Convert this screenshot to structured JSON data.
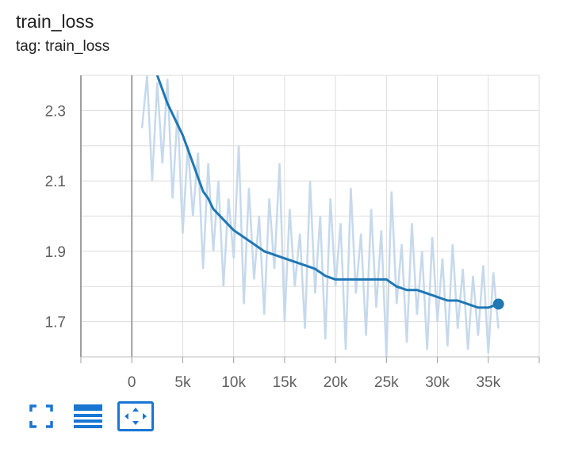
{
  "card": {
    "title": "train_loss",
    "tag": "tag: train_loss"
  },
  "colors": {
    "smoothed_line": "#1f77b4",
    "raw_line": "#c6d9ec",
    "grid": "#dddddd",
    "axis_zero": "#9e9e9e",
    "toolbar_icon": "#1976d2"
  },
  "toolbar": {
    "buttons": [
      {
        "icon": "fullscreen-icon"
      },
      {
        "icon": "toggle-log-scale-icon"
      },
      {
        "icon": "fit-domain-icon",
        "active": true
      }
    ]
  },
  "chart_data": {
    "type": "line",
    "title": "",
    "xlabel": "",
    "ylabel": "",
    "xlim": [
      -5000,
      40000
    ],
    "ylim": [
      1.6,
      2.4
    ],
    "x_ticks": [
      0,
      5000,
      10000,
      15000,
      20000,
      25000,
      30000,
      35000
    ],
    "x_tick_labels": [
      "0",
      "5k",
      "10k",
      "15k",
      "20k",
      "25k",
      "30k",
      "35k"
    ],
    "y_ticks": [
      1.7,
      1.9,
      2.1,
      2.3
    ],
    "y_tick_labels": [
      "1.7",
      "1.9",
      "2.1",
      "2.3"
    ],
    "grid": true,
    "series": [
      {
        "style": "smoothed",
        "x": [
          2500,
          3000,
          3500,
          4000,
          4500,
          5000,
          5500,
          6000,
          6500,
          7000,
          7500,
          8000,
          9000,
          10000,
          11000,
          12000,
          13000,
          14000,
          15000,
          16000,
          17000,
          18000,
          19000,
          20000,
          21000,
          22000,
          23000,
          24000,
          25000,
          26000,
          27000,
          28000,
          29000,
          30000,
          31000,
          32000,
          33000,
          34000,
          35000,
          36000
        ],
        "y": [
          2.4,
          2.36,
          2.32,
          2.29,
          2.26,
          2.23,
          2.19,
          2.15,
          2.11,
          2.07,
          2.05,
          2.02,
          1.99,
          1.96,
          1.94,
          1.92,
          1.9,
          1.89,
          1.88,
          1.87,
          1.86,
          1.85,
          1.83,
          1.82,
          1.82,
          1.82,
          1.82,
          1.82,
          1.82,
          1.8,
          1.79,
          1.79,
          1.78,
          1.77,
          1.76,
          1.76,
          1.75,
          1.74,
          1.74,
          1.75
        ]
      },
      {
        "style": "raw",
        "x": [
          1000,
          1500,
          2000,
          2500,
          3000,
          3500,
          4000,
          4500,
          5000,
          5500,
          6000,
          6500,
          7000,
          7500,
          8000,
          8500,
          9000,
          9500,
          10000,
          10500,
          11000,
          11500,
          12000,
          12500,
          13000,
          13500,
          14000,
          14500,
          15000,
          15500,
          16000,
          16500,
          17000,
          17500,
          18000,
          18500,
          19000,
          19500,
          20000,
          20500,
          21000,
          21500,
          22000,
          22500,
          23000,
          23500,
          24000,
          24500,
          25000,
          25500,
          26000,
          26500,
          27000,
          27500,
          28000,
          28500,
          29000,
          29500,
          30000,
          30500,
          31000,
          31500,
          32000,
          32500,
          33000,
          33500,
          34000,
          34500,
          35000,
          35500,
          36000
        ],
        "y": [
          2.25,
          2.4,
          2.1,
          2.38,
          2.15,
          2.39,
          2.05,
          2.3,
          1.95,
          2.2,
          2.0,
          2.18,
          1.85,
          2.15,
          1.9,
          2.1,
          1.8,
          2.05,
          1.88,
          2.2,
          1.75,
          2.08,
          1.82,
          2.0,
          1.72,
          2.05,
          1.85,
          2.15,
          1.7,
          2.02,
          1.8,
          1.95,
          1.68,
          2.1,
          1.78,
          2.0,
          1.65,
          2.05,
          1.8,
          1.98,
          1.62,
          2.08,
          1.78,
          1.95,
          1.66,
          2.02,
          1.74,
          1.96,
          1.6,
          2.07,
          1.75,
          1.92,
          1.64,
          1.98,
          1.72,
          1.9,
          1.62,
          1.94,
          1.7,
          1.88,
          1.63,
          1.92,
          1.68,
          1.85,
          1.62,
          1.83,
          1.66,
          1.86,
          1.61,
          1.84,
          1.68
        ]
      }
    ]
  }
}
